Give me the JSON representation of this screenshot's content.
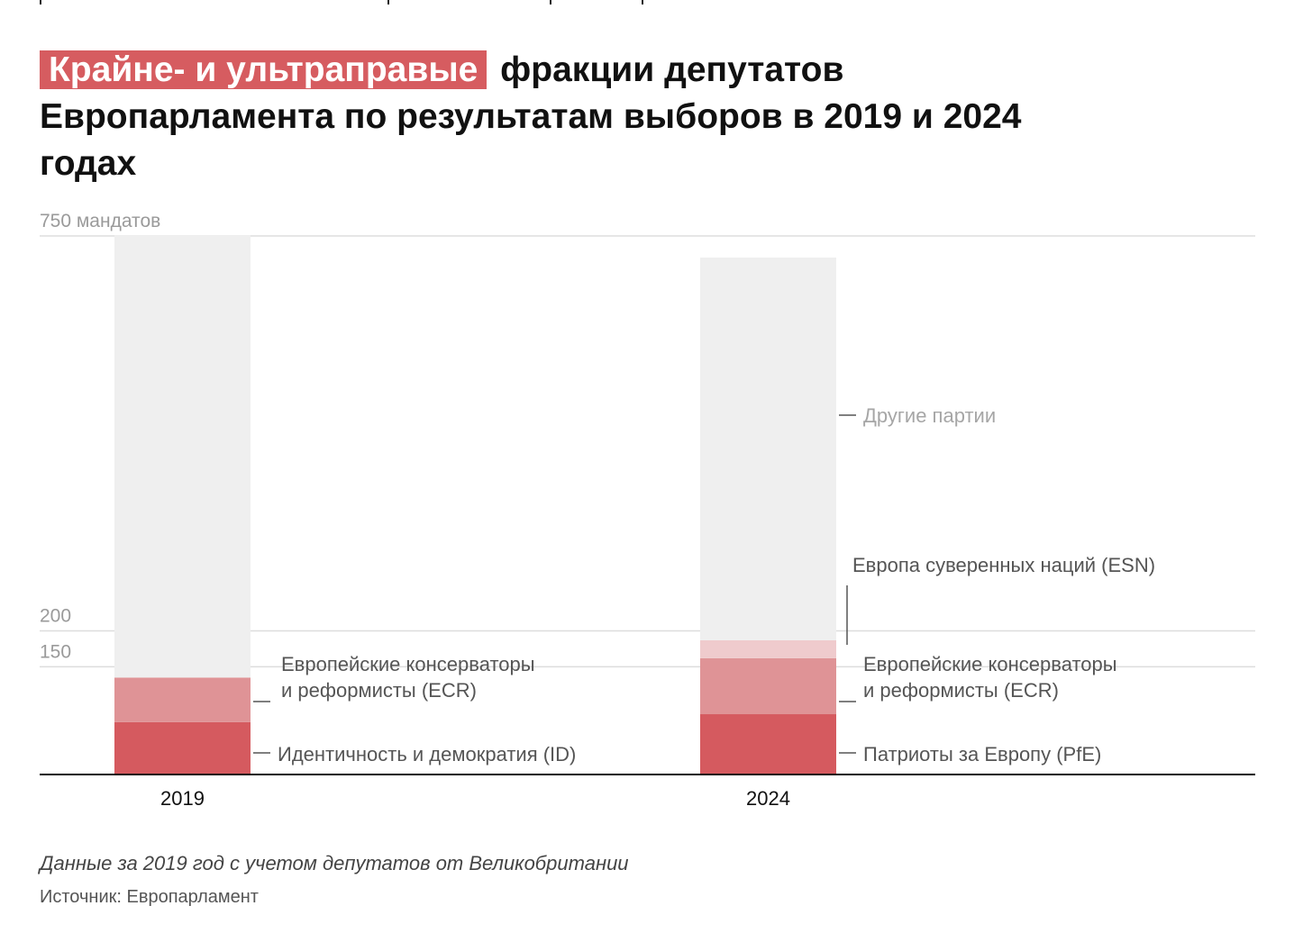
{
  "title": {
    "highlight": "Крайне- и ультраправые",
    "rest": "фракции депутатов Европарламента по результатам выборов в 2019 и 2024 годах"
  },
  "chart_data": {
    "type": "bar",
    "stacked": true,
    "categories": [
      "2019",
      "2024"
    ],
    "ylim": [
      0,
      750
    ],
    "gridlines": [
      {
        "value": 750,
        "label": "750 мандатов"
      },
      {
        "value": 200,
        "label": "200"
      },
      {
        "value": 150,
        "label": "150"
      }
    ],
    "series": [
      {
        "key": "far_right",
        "labels": [
          "Идентичность и демократия (ID)",
          "Патриоты за Европу (PfE)"
        ],
        "values": [
          73,
          84
        ],
        "color": "#d55a5f"
      },
      {
        "key": "ecr",
        "labels": [
          "Европейские консерваторы\nи реформисты (ECR)",
          "Европейские консерваторы\nи реформисты (ECR)"
        ],
        "values": [
          62,
          78
        ],
        "color": "#df9396"
      },
      {
        "key": "esn",
        "labels": [
          null,
          "Европа суверенных наций (ESN)"
        ],
        "values": [
          0,
          25
        ],
        "color": "#efcbcd"
      },
      {
        "key": "other",
        "labels": [
          null,
          "Другие партии"
        ],
        "values": [
          616,
          533
        ],
        "color": "#efefef"
      }
    ],
    "totals": [
      751,
      720
    ]
  },
  "footer": {
    "note": "Данные за 2019 год с учетом депутатов от Великобритании",
    "source": "Источник: Европарламент"
  }
}
